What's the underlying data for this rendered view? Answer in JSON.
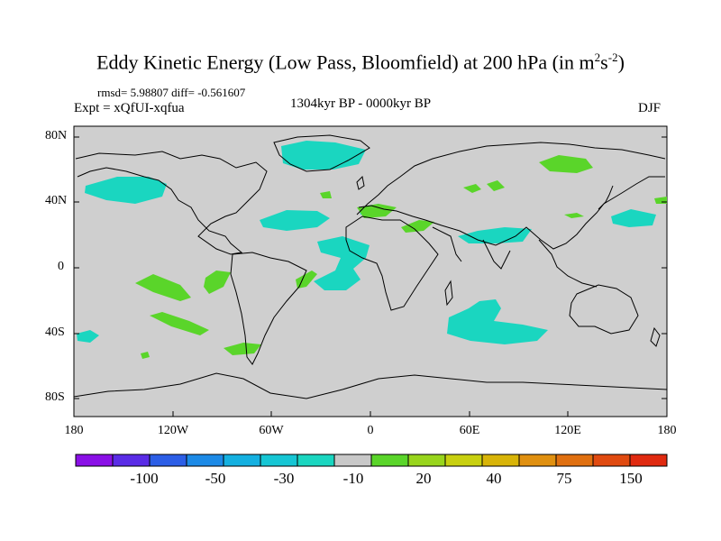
{
  "title": {
    "main": "Eddy Kinetic Energy (Low Pass, Bloomfield) at 200 hPa (in m",
    "sup1": "2",
    "mid": "s",
    "sup2": "-2",
    "end": ")"
  },
  "stats_line": "rmsd= 5.98807 diff= -0.561607",
  "experiment": "Expt = xQfUI-xqfua",
  "period": "1304kyr BP - 0000kyr BP",
  "season": "DJF",
  "lat_labels": [
    "80N",
    "40N",
    "0",
    "40S",
    "80S"
  ],
  "lon_labels": [
    "180",
    "120W",
    "60W",
    "0",
    "60E",
    "120E",
    "180"
  ],
  "colorbar": {
    "labels": [
      "-100",
      "-50",
      "-30",
      "-10",
      "20",
      "40",
      "75",
      "150"
    ],
    "colors": [
      "#8a10e6",
      "#5a2ce6",
      "#2c5ee6",
      "#1c8ae6",
      "#14b0e0",
      "#16c6d4",
      "#1ad6c0",
      "#c8c8c8",
      "#5ad52a",
      "#98d51c",
      "#c8d010",
      "#d8b408",
      "#e09010",
      "#e07010",
      "#e04a10",
      "#e02a10"
    ]
  },
  "map": {
    "background_color": "#cfcfcf",
    "cyan_color": "#1ad6c0",
    "green_color": "#5ad52a"
  }
}
